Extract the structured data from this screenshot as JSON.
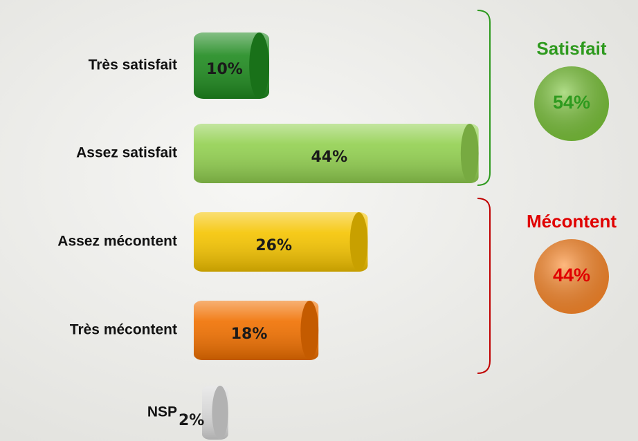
{
  "chart_data": {
    "type": "bar",
    "categories": [
      "Très satisfait",
      "Assez satisfait",
      "Assez mécontent",
      "Très mécontent",
      "NSP"
    ],
    "values": [
      10,
      44,
      26,
      18,
      2
    ],
    "value_labels": [
      "10%",
      "44%",
      "26%",
      "18%",
      "2%"
    ],
    "colors": [
      "#1f8a1f",
      "#92d050",
      "#f5c400",
      "#f07000",
      "#d9d9d9"
    ],
    "groups": {
      "names": [
        "Satisfait",
        "Mécontent"
      ],
      "values": [
        54,
        44
      ],
      "value_labels": [
        "54%",
        "44%"
      ],
      "colors": [
        "#2e9a1e",
        "#e00000"
      ],
      "fills": [
        "#7cc63a",
        "#ff8a2a"
      ]
    }
  }
}
